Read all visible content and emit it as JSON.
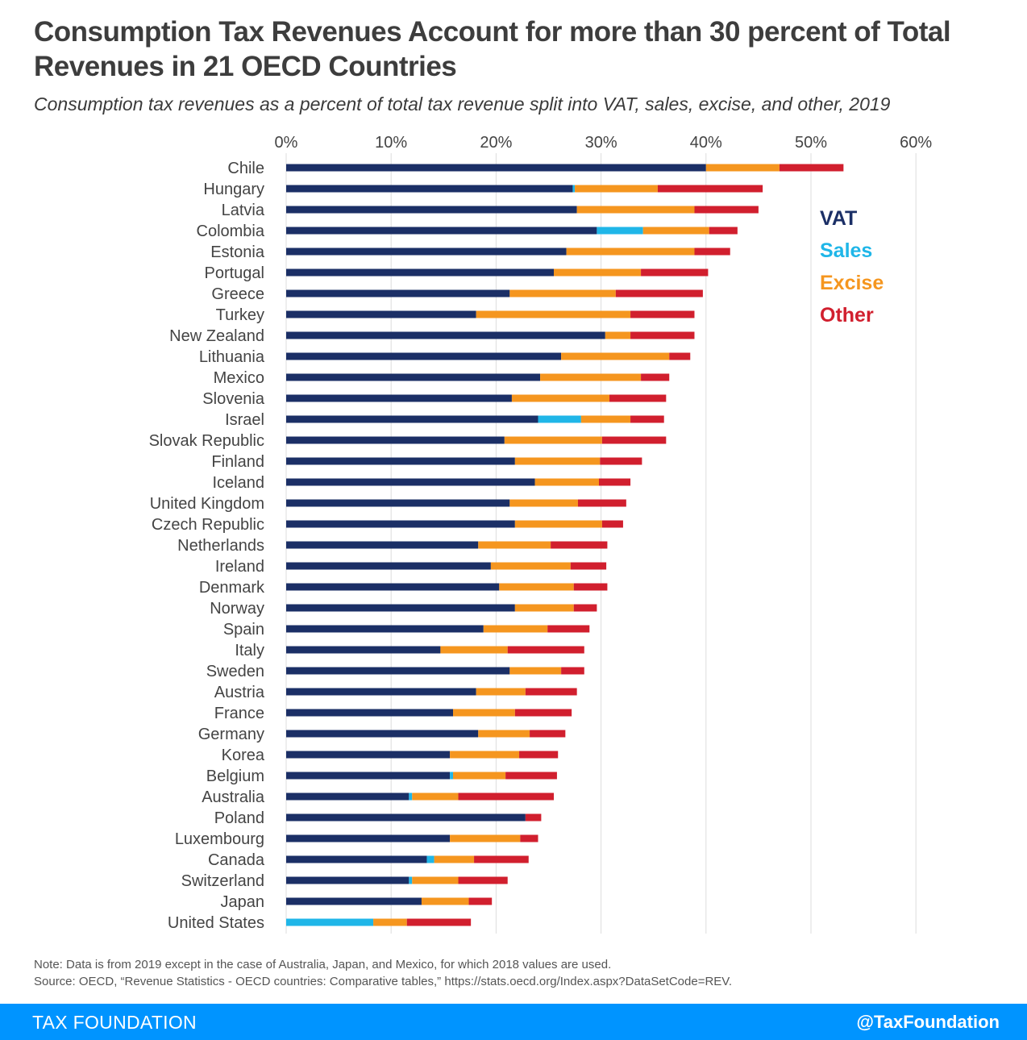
{
  "title": "Consumption Tax Revenues Account for more than 30 percent of Total Revenues in 21 OECD Countries",
  "subtitle": "Consumption tax revenues as a percent of total tax revenue split into VAT, sales, excise, and other, 2019",
  "note": "Note: Data is from 2019 except in the case of Australia, Japan, and Mexico, for which 2018 values are used.",
  "source": "Source: OECD, “Revenue Statistics - OECD countries: Comparative tables,” https://stats.oecd.org/Index.aspx?DataSetCode=REV.",
  "footer": {
    "brand": "TAX FOUNDATION",
    "handle": "@TaxFoundation"
  },
  "colors": {
    "VAT": "#1b2f66",
    "Sales": "#1fb6e8",
    "Excise": "#f5961f",
    "Other": "#d11f2e",
    "grid": "#dddddd",
    "footer": "#0094ff"
  },
  "chart_data": {
    "type": "bar",
    "orientation": "horizontal",
    "stacked": true,
    "xlim": [
      0,
      60
    ],
    "x_ticks": [
      "0%",
      "10%",
      "20%",
      "30%",
      "40%",
      "50%",
      "60%"
    ],
    "grid": true,
    "legend_position": "right",
    "categories": [
      "Chile",
      "Hungary",
      "Latvia",
      "Colombia",
      "Estonia",
      "Portugal",
      "Greece",
      "Turkey",
      "New Zealand",
      "Lithuania",
      "Mexico",
      "Slovenia",
      "Israel",
      "Slovak Republic",
      "Finland",
      "Iceland",
      "United Kingdom",
      "Czech Republic",
      "Netherlands",
      "Ireland",
      "Denmark",
      "Norway",
      "Spain",
      "Italy",
      "Sweden",
      "Austria",
      "France",
      "Germany",
      "Korea",
      "Belgium",
      "Australia",
      "Poland",
      "Luxembourg",
      "Canada",
      "Switzerland",
      "Japan",
      "United States"
    ],
    "series": [
      {
        "name": "VAT",
        "color": "#1b2f66",
        "values": [
          40.0,
          27.3,
          27.7,
          29.6,
          26.7,
          25.5,
          21.3,
          18.1,
          30.4,
          26.2,
          24.2,
          21.5,
          24.0,
          20.8,
          21.8,
          23.7,
          21.3,
          21.8,
          18.3,
          19.5,
          20.3,
          21.8,
          18.8,
          14.7,
          21.3,
          18.1,
          15.9,
          18.3,
          15.6,
          15.6,
          11.7,
          22.8,
          15.6,
          13.4,
          11.7,
          12.9,
          0.0
        ]
      },
      {
        "name": "Sales",
        "color": "#1fb6e8",
        "values": [
          0.0,
          0.2,
          0.0,
          4.4,
          0.0,
          0.0,
          0.0,
          0.0,
          0.0,
          0.0,
          0.0,
          0.0,
          4.1,
          0.0,
          0.0,
          0.0,
          0.0,
          0.0,
          0.0,
          0.0,
          0.0,
          0.0,
          0.0,
          0.0,
          0.0,
          0.0,
          0.0,
          0.0,
          0.0,
          0.3,
          0.3,
          0.0,
          0.0,
          0.7,
          0.3,
          0.0,
          8.3
        ]
      },
      {
        "name": "Excise",
        "color": "#f5961f",
        "values": [
          7.0,
          7.9,
          11.2,
          6.3,
          12.2,
          8.3,
          10.1,
          14.7,
          2.4,
          10.3,
          9.6,
          9.3,
          4.7,
          9.3,
          8.1,
          6.1,
          6.5,
          8.3,
          6.9,
          7.6,
          7.1,
          5.6,
          6.1,
          6.4,
          4.9,
          4.7,
          5.9,
          4.9,
          6.6,
          5.0,
          4.4,
          0.0,
          6.7,
          3.8,
          4.4,
          4.5,
          3.2
        ]
      },
      {
        "name": "Other",
        "color": "#d11f2e",
        "values": [
          6.1,
          10.0,
          6.1,
          2.7,
          3.4,
          6.4,
          8.3,
          6.1,
          6.1,
          2.0,
          2.7,
          5.4,
          3.2,
          6.1,
          4.0,
          3.0,
          4.6,
          2.0,
          5.4,
          3.4,
          3.2,
          2.2,
          4.0,
          7.3,
          2.2,
          4.9,
          5.4,
          3.4,
          3.7,
          4.9,
          9.1,
          1.5,
          1.7,
          5.2,
          4.7,
          2.2,
          6.1
        ]
      }
    ]
  }
}
